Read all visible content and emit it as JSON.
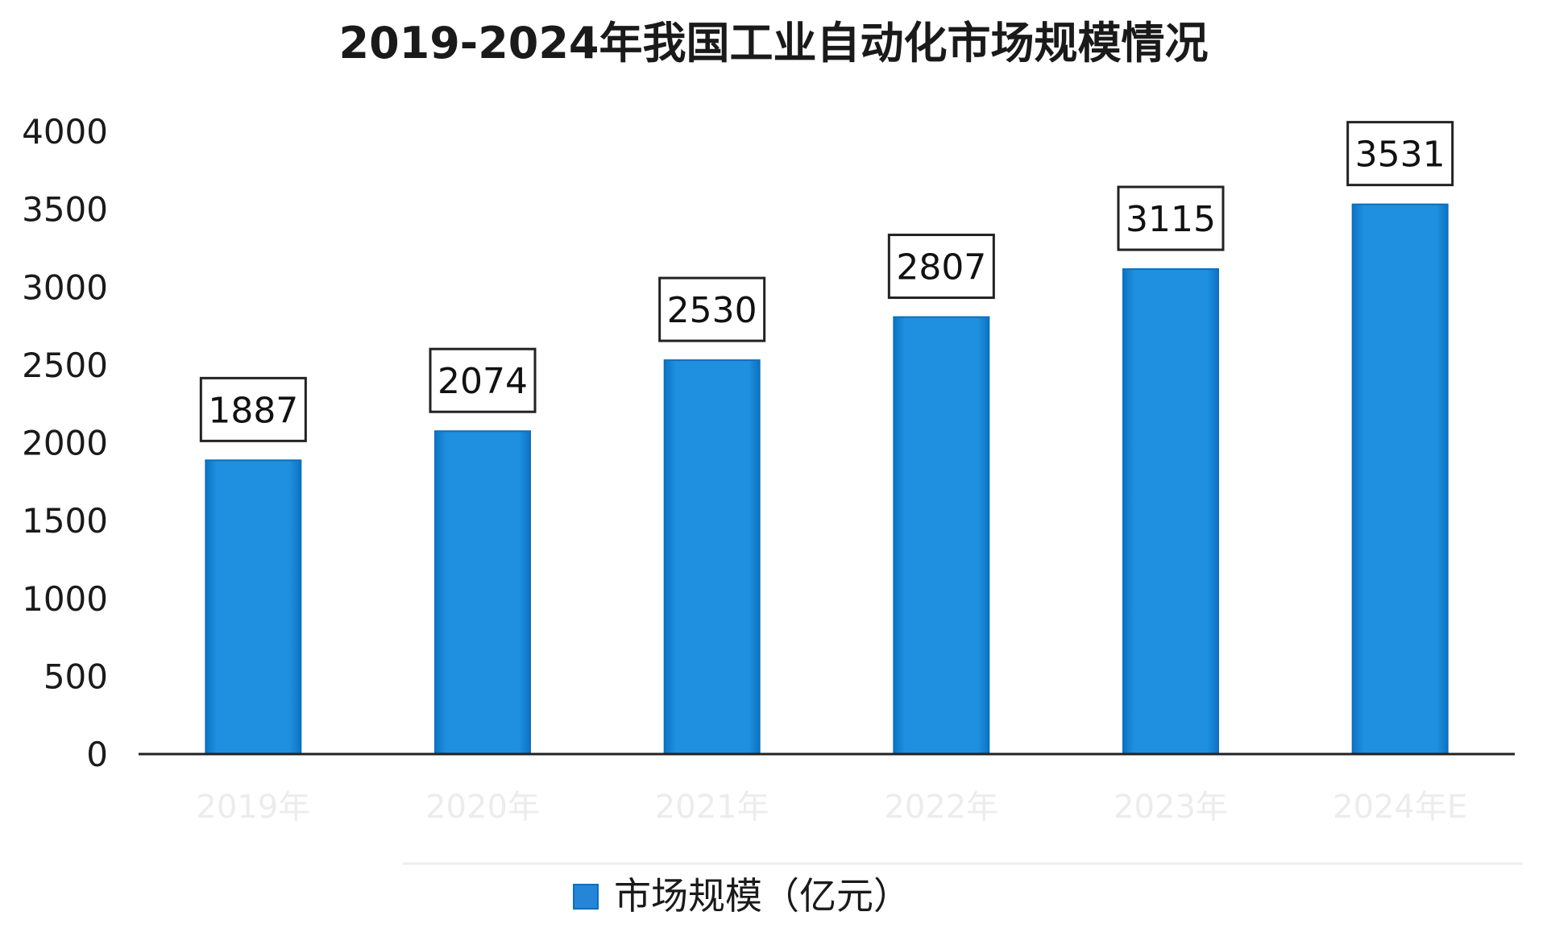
{
  "chart_data": {
    "type": "bar",
    "title": "2019-2024年我国工业自动化市场规模情况",
    "categories": [
      "2019年",
      "2020年",
      "2021年",
      "2022年",
      "2023年",
      "2024年E"
    ],
    "series": [
      {
        "name": "市场规模（亿元）",
        "values": [
          1887,
          2074,
          2530,
          2807,
          3115,
          3531
        ]
      }
    ],
    "data_labels": [
      "1887",
      "2074",
      "2530",
      "2807",
      "3115",
      "3531"
    ],
    "yticks": [
      "0",
      "500",
      "1000",
      "1500",
      "2000",
      "2500",
      "3000",
      "3500",
      "4000"
    ],
    "ylim": [
      0,
      4000
    ],
    "grid": false,
    "legend_position": "bottom",
    "colors": {
      "bar": "#1f90e0",
      "bar_dark": "#0d6fbd",
      "axis": "#222222",
      "legend_marker": "#2585d6"
    }
  }
}
